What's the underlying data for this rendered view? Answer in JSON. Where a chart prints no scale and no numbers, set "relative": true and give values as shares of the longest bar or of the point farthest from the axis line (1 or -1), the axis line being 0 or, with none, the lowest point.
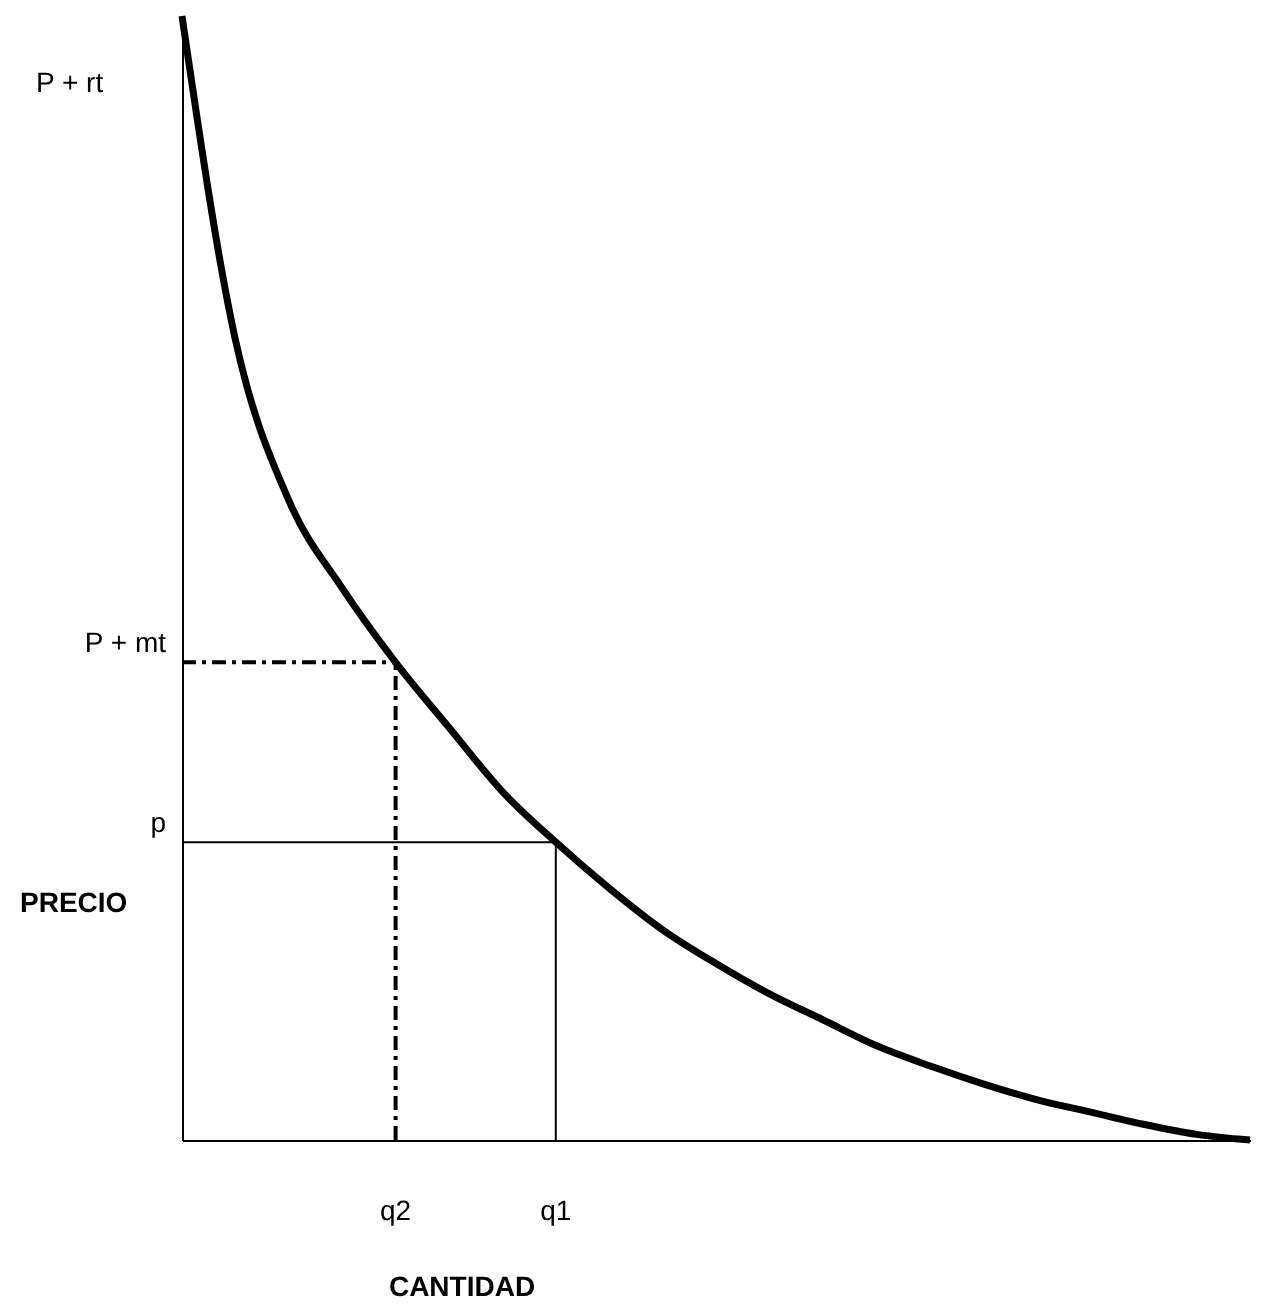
{
  "chart_data": {
    "type": "line",
    "relative": true,
    "xlabel": "CANTIDAD",
    "ylabel": "PRECIO",
    "categories": [
      null,
      null,
      null,
      null,
      "q2",
      null,
      null,
      "q1",
      null,
      null,
      null,
      null,
      null,
      null,
      null,
      null,
      null,
      null,
      null,
      null,
      null
    ],
    "series": [
      {
        "color": "#000000",
        "values": [
          1,
          0.712,
          0.569,
          0.491,
          0.425,
          0.367,
          0.31,
          0.265,
          0.224,
          0.187,
          0.157,
          0.13,
          0.107,
          0.084,
          0.066,
          0.05,
          0.036,
          0.025,
          0.014,
          0.005,
          0
        ]
      }
    ],
    "annotations": [
      "P + rt"
    ],
    "ref_lines": [
      {
        "axis": "y",
        "value": 0.425,
        "label": "P + mt",
        "line_style": "dashed"
      },
      {
        "axis": "y",
        "value": 0.265,
        "label": "p",
        "line_style": "solid"
      },
      {
        "axis": "x",
        "value": "q2",
        "line_style": "dashed"
      },
      {
        "axis": "x",
        "value": "q1",
        "line_style": "solid"
      }
    ],
    "grid": false,
    "marker": "none",
    "line_style": "solid"
  }
}
